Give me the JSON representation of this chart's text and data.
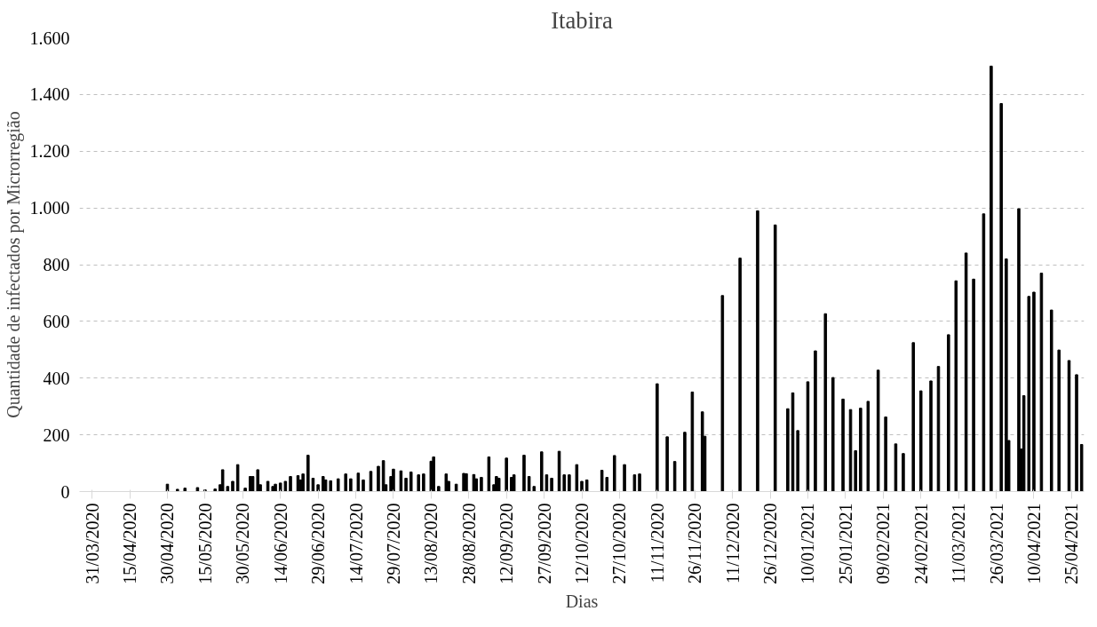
{
  "chart_data": {
    "type": "bar",
    "title": "Itabira",
    "xlabel": "Dias",
    "ylabel": "Quantidade de infectados por Microrregião",
    "color": "#000000",
    "x": [
      "2020-04-30",
      "2020-05-04",
      "2020-05-07",
      "2020-05-12",
      "2020-05-15",
      "2020-05-19",
      "2020-05-21",
      "2020-05-22",
      "2020-05-24",
      "2020-05-26",
      "2020-05-28",
      "2020-05-31",
      "2020-06-02",
      "2020-06-03",
      "2020-06-05",
      "2020-06-06",
      "2020-06-09",
      "2020-06-11",
      "2020-06-12",
      "2020-06-14",
      "2020-06-16",
      "2020-06-18",
      "2020-06-21",
      "2020-06-22",
      "2020-06-23",
      "2020-06-25",
      "2020-06-27",
      "2020-06-29",
      "2020-07-01",
      "2020-07-02",
      "2020-07-04",
      "2020-07-07",
      "2020-07-10",
      "2020-07-12",
      "2020-07-15",
      "2020-07-17",
      "2020-07-20",
      "2020-07-23",
      "2020-07-25",
      "2020-07-26",
      "2020-07-28",
      "2020-07-29",
      "2020-08-01",
      "2020-08-03",
      "2020-08-05",
      "2020-08-08",
      "2020-08-10",
      "2020-08-13",
      "2020-08-14",
      "2020-08-16",
      "2020-08-19",
      "2020-08-20",
      "2020-08-23",
      "2020-08-26",
      "2020-08-27",
      "2020-08-30",
      "2020-08-31",
      "2020-09-02",
      "2020-09-05",
      "2020-09-07",
      "2020-09-08",
      "2020-09-09",
      "2020-09-12",
      "2020-09-14",
      "2020-09-15",
      "2020-09-19",
      "2020-09-21",
      "2020-09-23",
      "2020-09-26",
      "2020-09-28",
      "2020-09-30",
      "2020-10-03",
      "2020-10-05",
      "2020-10-07",
      "2020-10-10",
      "2020-10-12",
      "2020-10-14",
      "2020-10-20",
      "2020-10-22",
      "2020-10-25",
      "2020-10-29",
      "2020-11-02",
      "2020-11-04",
      "2020-11-11",
      "2020-11-15",
      "2020-11-18",
      "2020-11-22",
      "2020-11-25",
      "2020-11-29",
      "2020-11-30",
      "2020-12-07",
      "2020-12-14",
      "2020-12-21",
      "2020-12-28",
      "2021-01-02",
      "2021-01-04",
      "2021-01-06",
      "2021-01-10",
      "2021-01-13",
      "2021-01-17",
      "2021-01-20",
      "2021-01-24",
      "2021-01-27",
      "2021-01-29",
      "2021-01-31",
      "2021-02-03",
      "2021-02-07",
      "2021-02-10",
      "2021-02-14",
      "2021-02-17",
      "2021-02-21",
      "2021-02-24",
      "2021-02-28",
      "2021-03-03",
      "2021-03-07",
      "2021-03-10",
      "2021-03-14",
      "2021-03-17",
      "2021-03-21",
      "2021-03-24",
      "2021-03-28",
      "2021-03-30",
      "2021-03-31",
      "2021-04-04",
      "2021-04-05",
      "2021-04-06",
      "2021-04-08",
      "2021-04-10",
      "2021-04-13",
      "2021-04-17",
      "2021-04-20",
      "2021-04-24",
      "2021-04-27",
      "2021-04-29"
    ],
    "values": [
      26,
      8,
      12,
      14,
      6,
      9,
      24,
      77,
      18,
      36,
      95,
      12,
      53,
      53,
      77,
      24,
      36,
      18,
      26,
      30,
      36,
      53,
      56,
      41,
      62,
      128,
      47,
      24,
      53,
      41,
      38,
      45,
      62,
      45,
      65,
      41,
      71,
      89,
      109,
      24,
      53,
      79,
      73,
      47,
      69,
      59,
      62,
      107,
      122,
      18,
      62,
      36,
      26,
      64,
      63,
      60,
      45,
      50,
      122,
      24,
      53,
      47,
      118,
      50,
      59,
      128,
      53,
      18,
      140,
      59,
      47,
      142,
      59,
      59,
      95,
      36,
      41,
      75,
      50,
      127,
      95,
      59,
      62,
      380,
      193,
      106,
      209,
      351,
      281,
      195,
      691,
      823,
      990,
      940,
      292,
      348,
      215,
      387,
      496,
      627,
      402,
      326,
      289,
      144,
      294,
      318,
      428,
      263,
      168,
      134,
      525,
      355,
      390,
      441,
      553,
      743,
      841,
      749,
      979,
      1500,
      1368,
      820,
      180,
      997,
      150,
      338,
      688,
      703,
      770,
      640,
      499,
      462,
      412,
      166
    ],
    "xlim": [
      "2020-03-26",
      "2021-04-30"
    ],
    "xticks": [
      {
        "value": "2020-03-31",
        "label": "31/03/2020"
      },
      {
        "value": "2020-04-15",
        "label": "15/04/2020"
      },
      {
        "value": "2020-04-30",
        "label": "30/04/2020"
      },
      {
        "value": "2020-05-15",
        "label": "15/05/2020"
      },
      {
        "value": "2020-05-30",
        "label": "30/05/2020"
      },
      {
        "value": "2020-06-14",
        "label": "14/06/2020"
      },
      {
        "value": "2020-06-29",
        "label": "29/06/2020"
      },
      {
        "value": "2020-07-14",
        "label": "14/07/2020"
      },
      {
        "value": "2020-07-29",
        "label": "29/07/2020"
      },
      {
        "value": "2020-08-13",
        "label": "13/08/2020"
      },
      {
        "value": "2020-08-28",
        "label": "28/08/2020"
      },
      {
        "value": "2020-09-12",
        "label": "12/09/2020"
      },
      {
        "value": "2020-09-27",
        "label": "27/09/2020"
      },
      {
        "value": "2020-10-12",
        "label": "12/10/2020"
      },
      {
        "value": "2020-10-27",
        "label": "27/10/2020"
      },
      {
        "value": "2020-11-11",
        "label": "11/11/2020"
      },
      {
        "value": "2020-11-26",
        "label": "26/11/2020"
      },
      {
        "value": "2020-12-11",
        "label": "11/12/2020"
      },
      {
        "value": "2020-12-26",
        "label": "26/12/2020"
      },
      {
        "value": "2021-01-10",
        "label": "10/01/2021"
      },
      {
        "value": "2021-01-25",
        "label": "25/01/2021"
      },
      {
        "value": "2021-02-09",
        "label": "09/02/2021"
      },
      {
        "value": "2021-02-24",
        "label": "24/02/2021"
      },
      {
        "value": "2021-03-11",
        "label": "11/03/2021"
      },
      {
        "value": "2021-03-26",
        "label": "26/03/2021"
      },
      {
        "value": "2021-04-10",
        "label": "10/04/2021"
      },
      {
        "value": "2021-04-25",
        "label": "25/04/2021"
      }
    ],
    "ylim": [
      0,
      1600
    ],
    "yticks": [
      0,
      {
        "value": 200,
        "label": "200"
      },
      {
        "value": 400,
        "label": "400"
      },
      {
        "value": 600,
        "label": "600"
      },
      {
        "value": 800,
        "label": "800"
      },
      {
        "value": 1000,
        "label": "1.000"
      },
      {
        "value": 1200,
        "label": "1.200"
      },
      {
        "value": 1400,
        "label": "1.400"
      },
      {
        "value": 1600,
        "label": "1.600"
      }
    ],
    "grid": "y"
  }
}
